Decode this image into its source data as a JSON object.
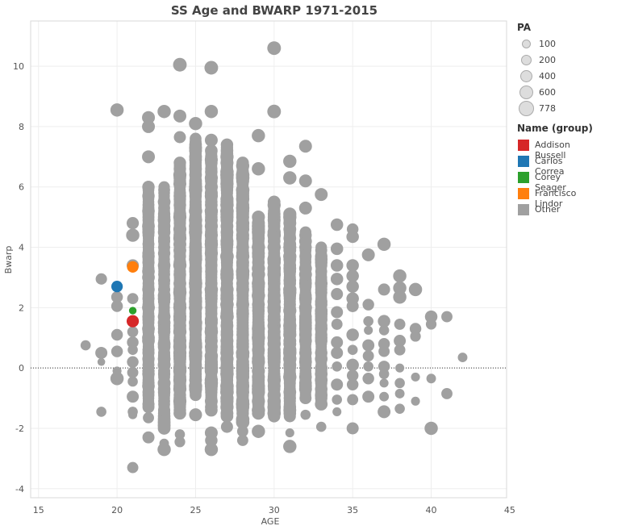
{
  "chart_data": {
    "type": "scatter",
    "title": "SS Age and BWARP 1971-2015",
    "xlabel": "AGE",
    "ylabel": "Bwarp",
    "xlim": [
      14.5,
      44.8
    ],
    "ylim": [
      -4.3,
      11.5
    ],
    "xticks": [
      15,
      20,
      25,
      30,
      35,
      40,
      45
    ],
    "yticks": [
      -4,
      -2,
      0,
      2,
      4,
      6,
      8,
      10
    ],
    "zero_line": "dotted",
    "grid": true,
    "size_legend": {
      "title": "PA",
      "items": [
        {
          "label": "100",
          "pa": 100
        },
        {
          "label": "200",
          "pa": 200
        },
        {
          "label": "400",
          "pa": 400
        },
        {
          "label": "600",
          "pa": 600
        },
        {
          "label": "778",
          "pa": 778
        }
      ]
    },
    "color_legend": {
      "title": "Name (group)",
      "items": [
        {
          "label": "Addison Russell",
          "color": "#d62728"
        },
        {
          "label": "Carlos Correa",
          "color": "#1f77b4"
        },
        {
          "label": "Corey Seager",
          "color": "#2ca02c"
        },
        {
          "label": "Francisco Lindor",
          "color": "#ff7f0e"
        },
        {
          "label": "Other",
          "color": "#a0a0a0"
        }
      ]
    },
    "highlight_series": [
      {
        "name": "Addison Russell",
        "color": "#d62728",
        "points": [
          {
            "x": 21,
            "y": 1.55,
            "pa": 520
          }
        ]
      },
      {
        "name": "Carlos Correa",
        "color": "#1f77b4",
        "points": [
          {
            "x": 20,
            "y": 2.7,
            "pa": 430
          }
        ]
      },
      {
        "name": "Corey Seager",
        "color": "#2ca02c",
        "points": [
          {
            "x": 21,
            "y": 1.9,
            "pa": 110
          }
        ]
      },
      {
        "name": "Francisco Lindor",
        "color": "#ff7f0e",
        "points": [
          {
            "x": 21,
            "y": 3.35,
            "pa": 430
          }
        ]
      }
    ],
    "other_series": {
      "name": "Other",
      "color": "#a0a0a0",
      "points": [
        {
          "x": 18,
          "y": 0.75,
          "pa": 300
        },
        {
          "x": 19,
          "y": 2.95,
          "pa": 420
        },
        {
          "x": 19,
          "y": 0.5,
          "pa": 500
        },
        {
          "x": 19,
          "y": 0.2,
          "pa": 120
        },
        {
          "x": 19,
          "y": -1.45,
          "pa": 300
        },
        {
          "x": 20,
          "y": 8.55,
          "pa": 650
        },
        {
          "x": 20,
          "y": 2.35,
          "pa": 450
        },
        {
          "x": 20,
          "y": 2.05,
          "pa": 450
        },
        {
          "x": 20,
          "y": 1.1,
          "pa": 450
        },
        {
          "x": 20,
          "y": 0.55,
          "pa": 450
        },
        {
          "x": 20,
          "y": -0.1,
          "pa": 200
        },
        {
          "x": 20,
          "y": -0.35,
          "pa": 650
        },
        {
          "x": 21,
          "y": 4.8,
          "pa": 520
        },
        {
          "x": 21,
          "y": 4.4,
          "pa": 650
        },
        {
          "x": 21,
          "y": 3.4,
          "pa": 520
        },
        {
          "x": 21,
          "y": 2.3,
          "pa": 400
        },
        {
          "x": 21,
          "y": 1.2,
          "pa": 380
        },
        {
          "x": 21,
          "y": 0.85,
          "pa": 450
        },
        {
          "x": 21,
          "y": 0.6,
          "pa": 300
        },
        {
          "x": 21,
          "y": 0.2,
          "pa": 450
        },
        {
          "x": 21,
          "y": -0.15,
          "pa": 400
        },
        {
          "x": 21,
          "y": -0.45,
          "pa": 300
        },
        {
          "x": 21,
          "y": -0.95,
          "pa": 500
        },
        {
          "x": 21,
          "y": -1.45,
          "pa": 300
        },
        {
          "x": 21,
          "y": -1.55,
          "pa": 200
        },
        {
          "x": 21,
          "y": -3.3,
          "pa": 400
        },
        {
          "x": 22,
          "y": 8.3,
          "pa": 600
        },
        {
          "x": 22,
          "y": 8.0,
          "pa": 600
        },
        {
          "x": 22,
          "y": 7.0,
          "pa": 600
        },
        {
          "x": 22,
          "y": -1.65,
          "pa": 400
        },
        {
          "x": 22,
          "y": -2.3,
          "pa": 500
        },
        {
          "x": 23,
          "y": 8.5,
          "pa": 650
        },
        {
          "x": 23,
          "y": -2.5,
          "pa": 250
        },
        {
          "x": 23,
          "y": -2.7,
          "pa": 650
        },
        {
          "x": 24,
          "y": 10.05,
          "pa": 700
        },
        {
          "x": 24,
          "y": 8.35,
          "pa": 600
        },
        {
          "x": 24,
          "y": 7.65,
          "pa": 500
        },
        {
          "x": 24,
          "y": -2.2,
          "pa": 300
        },
        {
          "x": 24,
          "y": -2.45,
          "pa": 350
        },
        {
          "x": 25,
          "y": 8.1,
          "pa": 650
        },
        {
          "x": 25,
          "y": -1.55,
          "pa": 600
        },
        {
          "x": 26,
          "y": 9.95,
          "pa": 700
        },
        {
          "x": 26,
          "y": 8.5,
          "pa": 650
        },
        {
          "x": 26,
          "y": 7.55,
          "pa": 600
        },
        {
          "x": 26,
          "y": -2.15,
          "pa": 600
        },
        {
          "x": 26,
          "y": -2.4,
          "pa": 550
        },
        {
          "x": 26,
          "y": -2.7,
          "pa": 650
        },
        {
          "x": 27,
          "y": -1.95,
          "pa": 500
        },
        {
          "x": 28,
          "y": -2.1,
          "pa": 400
        },
        {
          "x": 28,
          "y": -2.4,
          "pa": 400
        },
        {
          "x": 29,
          "y": 7.7,
          "pa": 650
        },
        {
          "x": 29,
          "y": 6.6,
          "pa": 650
        },
        {
          "x": 29,
          "y": -2.1,
          "pa": 650
        },
        {
          "x": 30,
          "y": 10.6,
          "pa": 700
        },
        {
          "x": 30,
          "y": 8.5,
          "pa": 700
        },
        {
          "x": 31,
          "y": 6.85,
          "pa": 650
        },
        {
          "x": 31,
          "y": 6.3,
          "pa": 650
        },
        {
          "x": 31,
          "y": -2.15,
          "pa": 200
        },
        {
          "x": 31,
          "y": -2.6,
          "pa": 650
        },
        {
          "x": 32,
          "y": 7.35,
          "pa": 600
        },
        {
          "x": 32,
          "y": 6.2,
          "pa": 600
        },
        {
          "x": 32,
          "y": 5.3,
          "pa": 600
        },
        {
          "x": 32,
          "y": -1.55,
          "pa": 300
        },
        {
          "x": 33,
          "y": 5.75,
          "pa": 600
        },
        {
          "x": 33,
          "y": -1.95,
          "pa": 300
        },
        {
          "x": 34,
          "y": 4.75,
          "pa": 550
        },
        {
          "x": 34,
          "y": 3.95,
          "pa": 550
        },
        {
          "x": 34,
          "y": 3.4,
          "pa": 550
        },
        {
          "x": 34,
          "y": 2.95,
          "pa": 550
        },
        {
          "x": 34,
          "y": 2.45,
          "pa": 500
        },
        {
          "x": 34,
          "y": 1.85,
          "pa": 500
        },
        {
          "x": 34,
          "y": 1.45,
          "pa": 400
        },
        {
          "x": 34,
          "y": 0.85,
          "pa": 500
        },
        {
          "x": 34,
          "y": 0.5,
          "pa": 500
        },
        {
          "x": 34,
          "y": 0.05,
          "pa": 300
        },
        {
          "x": 34,
          "y": -0.55,
          "pa": 500
        },
        {
          "x": 34,
          "y": -1.05,
          "pa": 300
        },
        {
          "x": 34,
          "y": -1.45,
          "pa": 200
        },
        {
          "x": 35,
          "y": 4.6,
          "pa": 450
        },
        {
          "x": 35,
          "y": 4.35,
          "pa": 550
        },
        {
          "x": 35,
          "y": 3.4,
          "pa": 550
        },
        {
          "x": 35,
          "y": 3.05,
          "pa": 550
        },
        {
          "x": 35,
          "y": 2.7,
          "pa": 550
        },
        {
          "x": 35,
          "y": 2.3,
          "pa": 550
        },
        {
          "x": 35,
          "y": 2.05,
          "pa": 500
        },
        {
          "x": 35,
          "y": 1.1,
          "pa": 550
        },
        {
          "x": 35,
          "y": 0.6,
          "pa": 300
        },
        {
          "x": 35,
          "y": 0.1,
          "pa": 550
        },
        {
          "x": 35,
          "y": -0.25,
          "pa": 450
        },
        {
          "x": 35,
          "y": -0.55,
          "pa": 450
        },
        {
          "x": 35,
          "y": -1.05,
          "pa": 400
        },
        {
          "x": 35,
          "y": -2.0,
          "pa": 500
        },
        {
          "x": 36,
          "y": 3.75,
          "pa": 600
        },
        {
          "x": 36,
          "y": 2.1,
          "pa": 450
        },
        {
          "x": 36,
          "y": 1.55,
          "pa": 300
        },
        {
          "x": 36,
          "y": 1.25,
          "pa": 200
        },
        {
          "x": 36,
          "y": 0.75,
          "pa": 500
        },
        {
          "x": 36,
          "y": 0.4,
          "pa": 400
        },
        {
          "x": 36,
          "y": 0.05,
          "pa": 300
        },
        {
          "x": 36,
          "y": -0.35,
          "pa": 450
        },
        {
          "x": 36,
          "y": -0.95,
          "pa": 500
        },
        {
          "x": 37,
          "y": 4.1,
          "pa": 650
        },
        {
          "x": 37,
          "y": 2.6,
          "pa": 500
        },
        {
          "x": 37,
          "y": 1.55,
          "pa": 550
        },
        {
          "x": 37,
          "y": 1.25,
          "pa": 300
        },
        {
          "x": 37,
          "y": 0.8,
          "pa": 450
        },
        {
          "x": 37,
          "y": 0.55,
          "pa": 400
        },
        {
          "x": 37,
          "y": 0.05,
          "pa": 450
        },
        {
          "x": 37,
          "y": -0.2,
          "pa": 300
        },
        {
          "x": 37,
          "y": -0.5,
          "pa": 200
        },
        {
          "x": 37,
          "y": -0.95,
          "pa": 250
        },
        {
          "x": 37,
          "y": -1.45,
          "pa": 600
        },
        {
          "x": 38,
          "y": 3.05,
          "pa": 650
        },
        {
          "x": 38,
          "y": 2.65,
          "pa": 650
        },
        {
          "x": 38,
          "y": 2.35,
          "pa": 650
        },
        {
          "x": 38,
          "y": 1.45,
          "pa": 400
        },
        {
          "x": 38,
          "y": 0.9,
          "pa": 500
        },
        {
          "x": 38,
          "y": 0.6,
          "pa": 400
        },
        {
          "x": 38,
          "y": 0.0,
          "pa": 200
        },
        {
          "x": 38,
          "y": -0.5,
          "pa": 300
        },
        {
          "x": 38,
          "y": -0.85,
          "pa": 250
        },
        {
          "x": 38,
          "y": -1.35,
          "pa": 300
        },
        {
          "x": 39,
          "y": 2.6,
          "pa": 650
        },
        {
          "x": 39,
          "y": 1.3,
          "pa": 450
        },
        {
          "x": 39,
          "y": 1.05,
          "pa": 350
        },
        {
          "x": 39,
          "y": -0.3,
          "pa": 200
        },
        {
          "x": 39,
          "y": -1.1,
          "pa": 200
        },
        {
          "x": 40,
          "y": 1.7,
          "pa": 550
        },
        {
          "x": 40,
          "y": 1.45,
          "pa": 350
        },
        {
          "x": 40,
          "y": -0.35,
          "pa": 250
        },
        {
          "x": 40,
          "y": -2.0,
          "pa": 650
        },
        {
          "x": 41,
          "y": 1.7,
          "pa": 400
        },
        {
          "x": 41,
          "y": -0.85,
          "pa": 400
        },
        {
          "x": 42,
          "y": 0.35,
          "pa": 250
        }
      ],
      "dense_columns": [
        {
          "x": 22,
          "y_min": -1.3,
          "y_max": 6.0,
          "pa": 580
        },
        {
          "x": 23,
          "y_min": -2.0,
          "y_max": 6.0,
          "pa": 600
        },
        {
          "x": 24,
          "y_min": -1.5,
          "y_max": 6.8,
          "pa": 650
        },
        {
          "x": 25,
          "y_min": -0.9,
          "y_max": 7.6,
          "pa": 670
        },
        {
          "x": 26,
          "y_min": -1.4,
          "y_max": 7.2,
          "pa": 670
        },
        {
          "x": 27,
          "y_min": -1.6,
          "y_max": 7.4,
          "pa": 680
        },
        {
          "x": 28,
          "y_min": -1.8,
          "y_max": 6.8,
          "pa": 680
        },
        {
          "x": 29,
          "y_min": -1.5,
          "y_max": 5.0,
          "pa": 670
        },
        {
          "x": 30,
          "y_min": -1.6,
          "y_max": 5.5,
          "pa": 680
        },
        {
          "x": 31,
          "y_min": -1.6,
          "y_max": 5.1,
          "pa": 650
        },
        {
          "x": 32,
          "y_min": -1.0,
          "y_max": 4.5,
          "pa": 600
        },
        {
          "x": 33,
          "y_min": -1.2,
          "y_max": 4.0,
          "pa": 580
        }
      ]
    }
  }
}
